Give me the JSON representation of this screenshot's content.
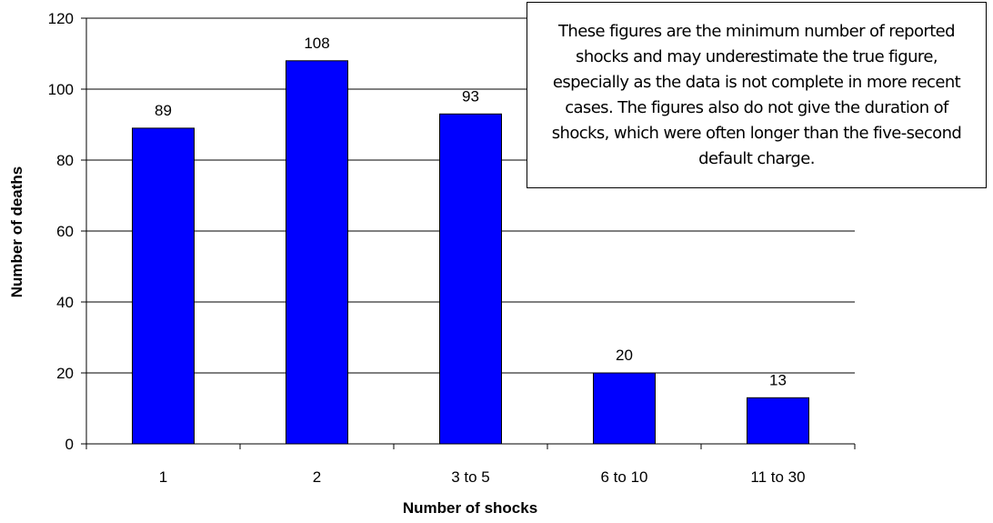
{
  "chart_data": {
    "type": "bar",
    "title": "",
    "xlabel": "Number of shocks",
    "ylabel": "Number of deaths",
    "categories": [
      "1",
      "2",
      "3 to 5",
      "6 to 10",
      "11 to 30"
    ],
    "values": [
      89,
      108,
      93,
      20,
      13
    ],
    "data_labels": [
      "89",
      "108",
      "93",
      "20",
      "13"
    ],
    "ylim": [
      0,
      120
    ],
    "yticks": [
      0,
      20,
      40,
      60,
      80,
      100,
      120
    ],
    "grid": true,
    "legend": "none",
    "bar_color": "#0000ff",
    "annotation": "These figures are the minimum number of reported shocks and may underestimate the true figure, especially as the data is not complete in more recent cases. The figures also do not give the duration of shocks, which were often longer than the five-second default charge."
  }
}
